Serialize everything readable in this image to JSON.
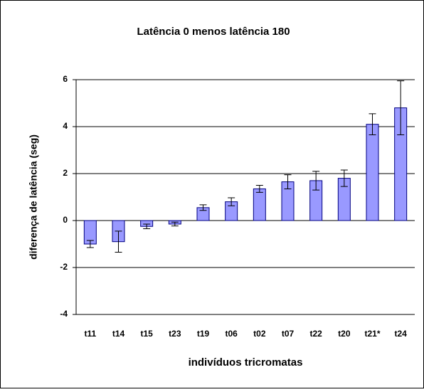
{
  "chart_data": {
    "type": "bar",
    "title": "Latência 0 menos latência 180",
    "x_label": "indivíduos tricromatas",
    "y_label": "diferença de latência (seg)",
    "categories": [
      "t11",
      "t14",
      "t15",
      "t23",
      "t19",
      "t06",
      "t02",
      "t07",
      "t22",
      "t20",
      "t21*",
      "t24"
    ],
    "values": [
      -1.0,
      -0.9,
      -0.25,
      -0.15,
      0.55,
      0.8,
      1.35,
      1.65,
      1.7,
      1.8,
      4.1,
      4.8
    ],
    "errors": [
      0.15,
      0.45,
      0.1,
      0.08,
      0.12,
      0.17,
      0.15,
      0.3,
      0.4,
      0.35,
      0.45,
      1.15
    ],
    "color": "#9999ff",
    "ylim": [
      -4,
      6
    ],
    "yticks": [
      -4,
      -2,
      0,
      2,
      4,
      6
    ],
    "grid": true
  }
}
